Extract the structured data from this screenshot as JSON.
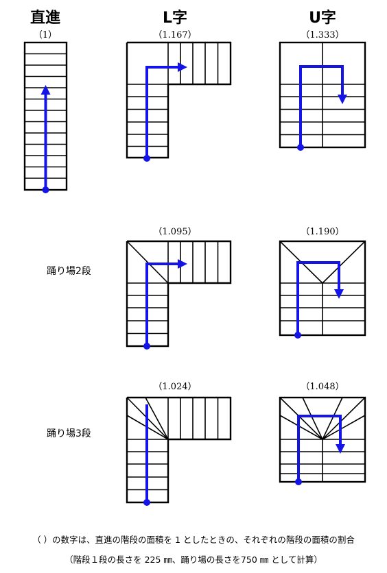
{
  "headers": {
    "straight": "直進",
    "l_shape": "L字",
    "u_shape": "U字"
  },
  "ratios": {
    "straight": "（1）",
    "l_plain": "（1.167）",
    "u_plain": "（1.333）",
    "l_winder2": "（1.095）",
    "u_winder2": "（1.190）",
    "l_winder3": "（1.024）",
    "u_winder3": "（1.048）"
  },
  "row_labels": {
    "winder2": "踊り場2段",
    "winder3": "踊り場3段"
  },
  "notes": {
    "line1": "（ ）の数字は、直進の階段の面積を 1 としたときの、それぞれの階段の面積の割合",
    "line2": "（階段１段の長さを 225 ㎜、踊り場の長さを750 ㎜ として計算）"
  },
  "colors": {
    "path": "#1414e6",
    "lines": "#000000",
    "background": "#ffffff"
  }
}
